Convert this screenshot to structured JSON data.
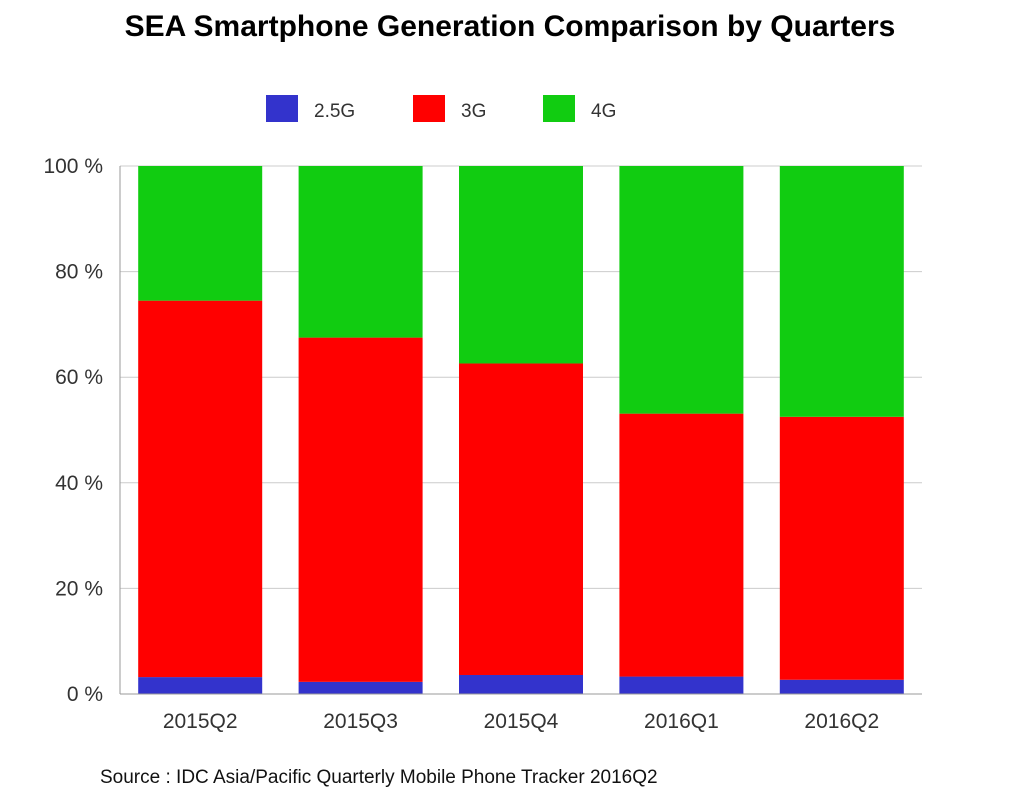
{
  "chart_data": {
    "type": "bar",
    "stacked": true,
    "title": "SEA Smartphone Generation Comparison by Quarters",
    "xlabel": "",
    "ylabel": "",
    "categories": [
      "2015Q2",
      "2015Q3",
      "2015Q4",
      "2016Q1",
      "2016Q2"
    ],
    "series": [
      {
        "name": "2.5G",
        "color": "#3333cc",
        "values": [
          3.2,
          2.3,
          3.6,
          3.3,
          2.7
        ]
      },
      {
        "name": "3G",
        "color": "#ff0000",
        "values": [
          71.3,
          65.2,
          59.0,
          49.8,
          49.8
        ]
      },
      {
        "name": "4G",
        "color": "#11cc11",
        "values": [
          25.5,
          32.5,
          37.4,
          46.9,
          47.5
        ]
      }
    ],
    "ylim": [
      0,
      100
    ],
    "yticks": [
      0,
      20,
      40,
      60,
      80,
      100
    ],
    "ytick_labels": [
      "0 %",
      "20 %",
      "40 %",
      "60 %",
      "80 %",
      "100 %"
    ],
    "grid": true,
    "legend_position": "top-center"
  },
  "source": "Source : IDC Asia/Pacific Quarterly Mobile Phone Tracker 2016Q2"
}
